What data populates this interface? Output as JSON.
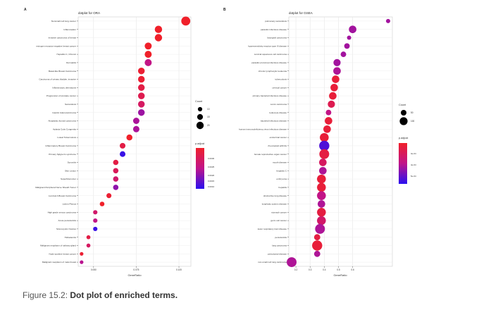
{
  "caption": {
    "prefix": "Figure 15.2: ",
    "bold": "Dot plot of enriched terms."
  },
  "colors": {
    "high_p": "#f0202a",
    "mid_p": "#c0148a",
    "low_p": "#2a10f0"
  },
  "chart_data": [
    {
      "type": "scatter",
      "panel_label": "A",
      "title": "dotplot for ORA",
      "xlabel": "GeneRatio",
      "xlim": [
        0.041,
        0.107
      ],
      "xticks": [
        "0.050",
        "0.075",
        "0.100"
      ],
      "xtick_values": [
        0.05,
        0.075,
        0.1
      ],
      "grid": true,
      "legend": {
        "count_title": "Count",
        "count_entries": [
          "10",
          "15",
          "20"
        ],
        "color_title": "p.adjust",
        "color_ticks": [
          "0.0030",
          "0.0025",
          "0.0020",
          "0.0015",
          "0.0010"
        ],
        "color_scale_reversed": false
      },
      "points": [
        {
          "term": "Nonsmall cell lung cancer",
          "gene_ratio": 0.104,
          "p_adjust": 0.0031,
          "count": 25
        },
        {
          "term": "Inflammation",
          "gene_ratio": 0.088,
          "p_adjust": 0.0031,
          "count": 20
        },
        {
          "term": "Invasive carcinoma of breast",
          "gene_ratio": 0.088,
          "p_adjust": 0.0031,
          "count": 20
        },
        {
          "term": "estrogen receptor-negative breast cancer",
          "gene_ratio": 0.082,
          "p_adjust": 0.0031,
          "count": 19
        },
        {
          "term": "Hepatitis C, Chronic",
          "gene_ratio": 0.082,
          "p_adjust": 0.0031,
          "count": 19
        },
        {
          "term": "Dermatitis",
          "gene_ratio": 0.082,
          "p_adjust": 0.0021,
          "count": 19
        },
        {
          "term": "Basal-like Breast Carcinoma",
          "gene_ratio": 0.078,
          "p_adjust": 0.003,
          "count": 18
        },
        {
          "term": "Carcinoma of urinary bladder, invasive",
          "gene_ratio": 0.078,
          "p_adjust": 0.003,
          "count": 18
        },
        {
          "term": "Inflammatory dermatosis",
          "gene_ratio": 0.078,
          "p_adjust": 0.0028,
          "count": 18
        },
        {
          "term": "Progression of prostate cancer",
          "gene_ratio": 0.078,
          "p_adjust": 0.0027,
          "count": 18
        },
        {
          "term": "Sarcoidosis",
          "gene_ratio": 0.078,
          "p_adjust": 0.0025,
          "count": 18
        },
        {
          "term": "Gastric Adenocarcinoma",
          "gene_ratio": 0.078,
          "p_adjust": 0.0018,
          "count": 18
        },
        {
          "term": "Anaplastic thyroid carcinoma",
          "gene_ratio": 0.075,
          "p_adjust": 0.0019,
          "count": 17
        },
        {
          "term": "Aplasia Cutis Congenita",
          "gene_ratio": 0.075,
          "p_adjust": 0.0019,
          "count": 17
        },
        {
          "term": "Luteal Tuberculosis",
          "gene_ratio": 0.071,
          "p_adjust": 0.0031,
          "count": 16
        },
        {
          "term": "Inflammatory Breast Carcinoma",
          "gene_ratio": 0.067,
          "p_adjust": 0.0028,
          "count": 15
        },
        {
          "term": "Primary Sjögren's syndrome",
          "gene_ratio": 0.067,
          "p_adjust": 0.0011,
          "count": 15
        },
        {
          "term": "Synovitis",
          "gene_ratio": 0.063,
          "p_adjust": 0.0028,
          "count": 14
        },
        {
          "term": "Skin Lesion",
          "gene_ratio": 0.063,
          "p_adjust": 0.0026,
          "count": 14
        },
        {
          "term": "Superficial ulcer",
          "gene_ratio": 0.063,
          "p_adjust": 0.0024,
          "count": 14
        },
        {
          "term": "Malignant Peripheral Nerve Sheath Tumor",
          "gene_ratio": 0.063,
          "p_adjust": 0.0017,
          "count": 14
        },
        {
          "term": "Luminal A Breast Carcinoma",
          "gene_ratio": 0.059,
          "p_adjust": 0.003,
          "count": 13
        },
        {
          "term": "Lichen Planus",
          "gene_ratio": 0.055,
          "p_adjust": 0.0031,
          "count": 12
        },
        {
          "term": "High grade serous carcinoma",
          "gene_ratio": 0.051,
          "p_adjust": 0.0024,
          "count": 11
        },
        {
          "term": "Acute periodontitis",
          "gene_ratio": 0.051,
          "p_adjust": 0.0021,
          "count": 11
        },
        {
          "term": "Sclerocystic Ovaries",
          "gene_ratio": 0.051,
          "p_adjust": 0.0011,
          "count": 11
        },
        {
          "term": "Hidradenitis",
          "gene_ratio": 0.047,
          "p_adjust": 0.0028,
          "count": 10
        },
        {
          "term": "Malignant neoplasm of salivary gland",
          "gene_ratio": 0.047,
          "p_adjust": 0.0025,
          "count": 10
        },
        {
          "term": "Node-positive breast cancer",
          "gene_ratio": 0.043,
          "p_adjust": 0.003,
          "count": 9
        },
        {
          "term": "Malignant neoplasm of male breast",
          "gene_ratio": 0.043,
          "p_adjust": 0.002,
          "count": 9
        }
      ]
    },
    {
      "type": "scatter",
      "panel_label": "B",
      "title": "dotplot for GSEA",
      "xlabel": "GeneRatio",
      "xlim": [
        0.15,
        0.88
      ],
      "xticks": [
        "0.2",
        "0.3",
        "0.4",
        "0.5",
        "0.6"
      ],
      "xtick_values": [
        0.2,
        0.3,
        0.4,
        0.5,
        0.6
      ],
      "grid": true,
      "legend": {
        "count_title": "Count",
        "count_entries": [
          "50",
          "100"
        ],
        "color_title": "p.adjust",
        "color_ticks": [
          "3e-04",
          "4e-04",
          "5e-04"
        ],
        "color_scale_reversed": true
      },
      "points": [
        {
          "term": "pulmonary sarcoidosis",
          "gene_ratio": 0.85,
          "p_adjust": 0.00045,
          "count": 30
        },
        {
          "term": "parasitic infectious disease",
          "gene_ratio": 0.6,
          "p_adjust": 0.00045,
          "count": 80
        },
        {
          "term": "laryngeal carcinoma",
          "gene_ratio": 0.575,
          "p_adjust": 0.00045,
          "count": 30
        },
        {
          "term": "hypersensitivity reaction type III disease",
          "gene_ratio": 0.56,
          "p_adjust": 0.00045,
          "count": 50
        },
        {
          "term": "cervical squamous cell carcinoma",
          "gene_ratio": 0.535,
          "p_adjust": 0.00045,
          "count": 50
        },
        {
          "term": "parasitic protozoa infectious disease",
          "gene_ratio": 0.49,
          "p_adjust": 0.00045,
          "count": 75
        },
        {
          "term": "chronic lymphocytic leukemia",
          "gene_ratio": 0.49,
          "p_adjust": 0.00044,
          "count": 80
        },
        {
          "term": "tuberculosis",
          "gene_ratio": 0.48,
          "p_adjust": 0.00032,
          "count": 80
        },
        {
          "term": "cervical cancer",
          "gene_ratio": 0.47,
          "p_adjust": 0.00032,
          "count": 80
        },
        {
          "term": "primary bacterial infectious disease",
          "gene_ratio": 0.46,
          "p_adjust": 0.00032,
          "count": 80
        },
        {
          "term": "cervix carcinoma",
          "gene_ratio": 0.45,
          "p_adjust": 0.00035,
          "count": 75
        },
        {
          "term": "leukocyte disease",
          "gene_ratio": 0.43,
          "p_adjust": 0.00042,
          "count": 50
        },
        {
          "term": "bacterial infectious disease",
          "gene_ratio": 0.43,
          "p_adjust": 0.00032,
          "count": 80
        },
        {
          "term": "human immunodeficiency virus infectious disease",
          "gene_ratio": 0.42,
          "p_adjust": 0.00032,
          "count": 80
        },
        {
          "term": "endocrinal cancer",
          "gene_ratio": 0.4,
          "p_adjust": 0.00032,
          "count": 100
        },
        {
          "term": "rheumatoid arthritis",
          "gene_ratio": 0.4,
          "p_adjust": 0.00052,
          "count": 120
        },
        {
          "term": "female reproductive organ cancer",
          "gene_ratio": 0.4,
          "p_adjust": 0.00033,
          "count": 115
        },
        {
          "term": "mouth disease",
          "gene_ratio": 0.39,
          "p_adjust": 0.00037,
          "count": 80
        },
        {
          "term": "hepatitis C",
          "gene_ratio": 0.39,
          "p_adjust": 0.00044,
          "count": 80
        },
        {
          "term": "embryoma",
          "gene_ratio": 0.38,
          "p_adjust": 0.00032,
          "count": 100
        },
        {
          "term": "hepatitis",
          "gene_ratio": 0.38,
          "p_adjust": 0.00032,
          "count": 100
        },
        {
          "term": "obstructive lung disease",
          "gene_ratio": 0.38,
          "p_adjust": 0.00042,
          "count": 100
        },
        {
          "term": "lymphatic system disease",
          "gene_ratio": 0.38,
          "p_adjust": 0.00044,
          "count": 80
        },
        {
          "term": "stomach cancer",
          "gene_ratio": 0.38,
          "p_adjust": 0.00033,
          "count": 100
        },
        {
          "term": "germ cell cancer",
          "gene_ratio": 0.38,
          "p_adjust": 0.00038,
          "count": 100
        },
        {
          "term": "lower respiratory tract disease",
          "gene_ratio": 0.37,
          "p_adjust": 0.00044,
          "count": 115
        },
        {
          "term": "periodontitis",
          "gene_ratio": 0.35,
          "p_adjust": 0.00033,
          "count": 60
        },
        {
          "term": "lung carcinoma",
          "gene_ratio": 0.35,
          "p_adjust": 0.00032,
          "count": 120
        },
        {
          "term": "periodontal disease",
          "gene_ratio": 0.35,
          "p_adjust": 0.00044,
          "count": 60
        },
        {
          "term": "non-small cell lung carcinoma",
          "gene_ratio": 0.17,
          "p_adjust": 0.00044,
          "count": 115
        }
      ]
    }
  ]
}
